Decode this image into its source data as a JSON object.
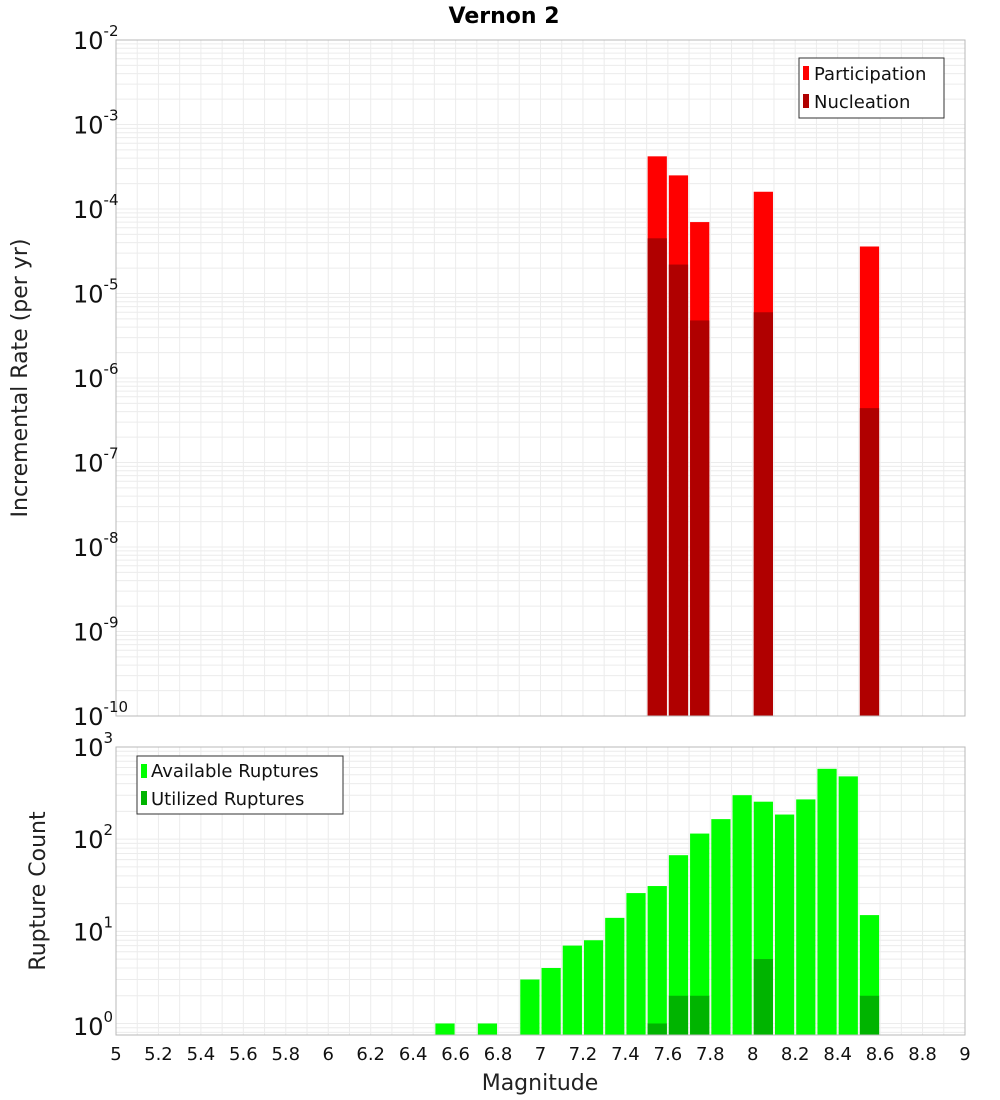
{
  "chart_data": [
    {
      "type": "bar",
      "title": "Vernon 2",
      "ylabel": "Incremental Rate (per yr)",
      "xlabel": "",
      "xlim": [
        5,
        9
      ],
      "ylim": [
        1e-10,
        0.01
      ],
      "yscale": "log",
      "ytick_exponents": [
        "-10",
        "-9",
        "-8",
        "-7",
        "-6",
        "-5",
        "-4",
        "-3",
        "-2"
      ],
      "legend": {
        "placement": "top-right",
        "entries": [
          "Participation",
          "Nucleation"
        ]
      },
      "series": [
        {
          "name": "Participation",
          "color": "#ff0000",
          "x": [
            7.55,
            7.65,
            7.75,
            8.05,
            8.55
          ],
          "values": [
            0.00042,
            0.00025,
            7e-05,
            0.00016,
            3.6e-05
          ]
        },
        {
          "name": "Nucleation",
          "color": "#b00000",
          "x": [
            7.55,
            7.65,
            7.75,
            8.05,
            8.55
          ],
          "values": [
            4.5e-05,
            2.2e-05,
            4.8e-06,
            6e-06,
            4.4e-07
          ]
        }
      ]
    },
    {
      "type": "bar",
      "title": "",
      "ylabel": "Rupture Count",
      "xlabel": "Magnitude",
      "xlim": [
        5,
        9
      ],
      "ylim": [
        0.75,
        1000
      ],
      "yscale": "log",
      "ytick_exponents": [
        "0",
        "1",
        "2",
        "3"
      ],
      "xticks": [
        "5",
        "5.2",
        "5.4",
        "5.6",
        "5.8",
        "6",
        "6.2",
        "6.4",
        "6.6",
        "6.8",
        "7",
        "7.2",
        "7.4",
        "7.6",
        "7.8",
        "8",
        "8.2",
        "8.4",
        "8.6",
        "8.8",
        "9"
      ],
      "legend": {
        "placement": "top-left",
        "entries": [
          "Available Ruptures",
          "Utilized Ruptures"
        ]
      },
      "series": [
        {
          "name": "Available Ruptures",
          "color": "#00ff00",
          "x": [
            6.55,
            6.75,
            6.95,
            7.05,
            7.15,
            7.25,
            7.35,
            7.45,
            7.55,
            7.65,
            7.75,
            7.85,
            7.95,
            8.05,
            8.15,
            8.25,
            8.35,
            8.45,
            8.55
          ],
          "values": [
            1,
            1,
            3,
            4,
            7,
            8,
            14,
            26,
            31,
            67,
            115,
            165,
            300,
            255,
            185,
            270,
            580,
            480,
            15
          ]
        },
        {
          "name": "Utilized Ruptures",
          "color": "#00b400",
          "x": [
            7.55,
            7.65,
            7.75,
            8.05,
            8.55
          ],
          "values": [
            1,
            2,
            2,
            5,
            2
          ]
        }
      ]
    }
  ]
}
